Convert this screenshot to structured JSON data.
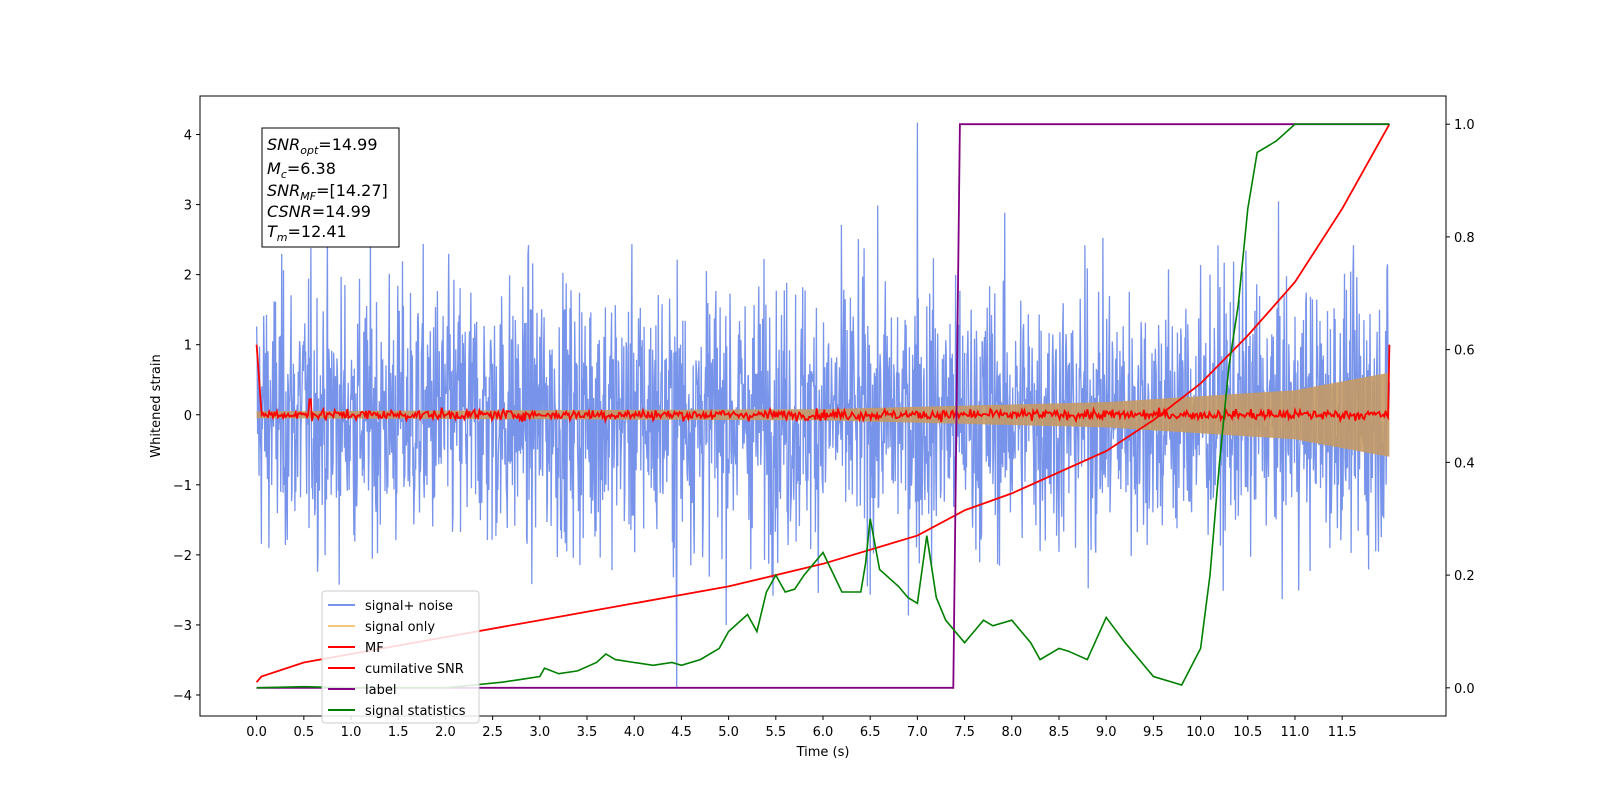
{
  "chart_data": {
    "type": "line",
    "xlabel": "Time (s)",
    "ylabel": "Whitened strain",
    "xlim": [
      -0.6,
      12.6
    ],
    "ylim_left": [
      -4.3,
      4.55
    ],
    "ylim_right": [
      -0.05,
      1.05
    ],
    "x_ticks": [
      "0.0",
      "0.5",
      "1.0",
      "1.5",
      "2.0",
      "2.5",
      "3.0",
      "3.5",
      "4.0",
      "4.5",
      "5.0",
      "5.5",
      "6.0",
      "6.5",
      "7.0",
      "7.5",
      "8.0",
      "8.5",
      "9.0",
      "9.5",
      "10.0",
      "10.5",
      "11.0",
      "11.5"
    ],
    "y_ticks_left": [
      "4",
      "3",
      "2",
      "1",
      "0",
      "−1",
      "−2",
      "−3",
      "−4"
    ],
    "y_ticks_right": [
      "1.0",
      "0.8",
      "0.6",
      "0.4",
      "0.2",
      "0.0"
    ],
    "annotation": {
      "lines": [
        {
          "main": "SNR",
          "sub": "opt",
          "value": "=14.99"
        },
        {
          "main": "M",
          "sub": "c",
          "value": "=6.38"
        },
        {
          "main": "SNR",
          "sub": "MF",
          "value": "=[14.27]"
        },
        {
          "main": "CSNR",
          "sub": "",
          "value": "=14.99"
        },
        {
          "main": "T",
          "sub": "m",
          "value": "=12.41"
        }
      ]
    },
    "legend": {
      "position": "lower-left",
      "entries": [
        {
          "label": "signal+ noise",
          "color": "#4a6fe3"
        },
        {
          "label": "signal only",
          "color": "#f5c77a"
        },
        {
          "label": "MF",
          "color": "#ff0000"
        },
        {
          "label": "cumilative SNR",
          "color": "#ff0000"
        },
        {
          "label": "label",
          "color": "#800080"
        },
        {
          "label": "signal statistics",
          "color": "#008000"
        }
      ]
    },
    "series": [
      {
        "name": "signal+ noise",
        "axis": "left",
        "color": "#4a6fe3",
        "t_range": [
          0.0,
          12.0
        ],
        "noise_sigma": 1.0,
        "peak_max": 4.17,
        "peak_min": -3.9
      },
      {
        "name": "signal only",
        "axis": "left",
        "color": "#f5c77a",
        "t_range": [
          0.0,
          12.0
        ],
        "envelope": [
          [
            0.0,
            0.05
          ],
          [
            6.0,
            0.08
          ],
          [
            9.0,
            0.18
          ],
          [
            11.0,
            0.35
          ],
          [
            12.0,
            0.6
          ]
        ]
      },
      {
        "name": "MF",
        "axis": "left",
        "color": "#ff0000",
        "t_range": [
          0.0,
          12.0
        ],
        "start_value": 1.0,
        "end_value": 1.0,
        "baseline": 0.0,
        "noise_amp": 0.08
      },
      {
        "name": "cumilative SNR",
        "axis": "right",
        "color": "#ff0000",
        "points": [
          [
            0.0,
            0.01
          ],
          [
            0.05,
            0.02
          ],
          [
            0.5,
            0.045
          ],
          [
            1.0,
            0.06
          ],
          [
            2.0,
            0.09
          ],
          [
            3.0,
            0.12
          ],
          [
            4.0,
            0.15
          ],
          [
            5.0,
            0.18
          ],
          [
            6.0,
            0.22
          ],
          [
            7.0,
            0.27
          ],
          [
            7.5,
            0.315
          ],
          [
            8.0,
            0.345
          ],
          [
            9.0,
            0.42
          ],
          [
            9.5,
            0.475
          ],
          [
            10.0,
            0.54
          ],
          [
            10.5,
            0.625
          ],
          [
            11.0,
            0.72
          ],
          [
            11.5,
            0.85
          ],
          [
            12.0,
            1.0
          ]
        ]
      },
      {
        "name": "label",
        "axis": "right",
        "color": "#800080",
        "points": [
          [
            0.0,
            0.0
          ],
          [
            7.38,
            0.0
          ],
          [
            7.45,
            1.0
          ],
          [
            12.0,
            1.0
          ]
        ]
      },
      {
        "name": "signal statistics",
        "axis": "right",
        "color": "#008000",
        "points": [
          [
            0.0,
            0.0
          ],
          [
            0.5,
            0.002
          ],
          [
            1.0,
            0.0
          ],
          [
            1.5,
            0.0
          ],
          [
            2.0,
            0.0
          ],
          [
            2.3,
            0.005
          ],
          [
            2.6,
            0.01
          ],
          [
            2.8,
            0.015
          ],
          [
            3.0,
            0.02
          ],
          [
            3.05,
            0.035
          ],
          [
            3.2,
            0.025
          ],
          [
            3.4,
            0.03
          ],
          [
            3.6,
            0.045
          ],
          [
            3.7,
            0.06
          ],
          [
            3.8,
            0.05
          ],
          [
            4.0,
            0.045
          ],
          [
            4.2,
            0.04
          ],
          [
            4.4,
            0.045
          ],
          [
            4.5,
            0.04
          ],
          [
            4.7,
            0.05
          ],
          [
            4.9,
            0.07
          ],
          [
            5.0,
            0.1
          ],
          [
            5.2,
            0.13
          ],
          [
            5.3,
            0.1
          ],
          [
            5.4,
            0.17
          ],
          [
            5.5,
            0.2
          ],
          [
            5.6,
            0.17
          ],
          [
            5.7,
            0.175
          ],
          [
            5.8,
            0.2
          ],
          [
            6.0,
            0.24
          ],
          [
            6.2,
            0.17
          ],
          [
            6.4,
            0.17
          ],
          [
            6.45,
            0.22
          ],
          [
            6.5,
            0.3
          ],
          [
            6.6,
            0.21
          ],
          [
            6.8,
            0.18
          ],
          [
            6.9,
            0.16
          ],
          [
            7.0,
            0.15
          ],
          [
            7.1,
            0.27
          ],
          [
            7.2,
            0.16
          ],
          [
            7.3,
            0.12
          ],
          [
            7.5,
            0.08
          ],
          [
            7.6,
            0.1
          ],
          [
            7.7,
            0.12
          ],
          [
            7.8,
            0.11
          ],
          [
            8.0,
            0.12
          ],
          [
            8.2,
            0.08
          ],
          [
            8.3,
            0.05
          ],
          [
            8.5,
            0.07
          ],
          [
            8.6,
            0.065
          ],
          [
            8.8,
            0.05
          ],
          [
            9.0,
            0.125
          ],
          [
            9.2,
            0.08
          ],
          [
            9.5,
            0.02
          ],
          [
            9.8,
            0.005
          ],
          [
            10.0,
            0.07
          ],
          [
            10.1,
            0.2
          ],
          [
            10.2,
            0.4
          ],
          [
            10.3,
            0.57
          ],
          [
            10.4,
            0.68
          ],
          [
            10.5,
            0.85
          ],
          [
            10.6,
            0.95
          ],
          [
            10.8,
            0.97
          ],
          [
            11.0,
            1.0
          ],
          [
            12.0,
            1.0
          ]
        ]
      }
    ]
  }
}
